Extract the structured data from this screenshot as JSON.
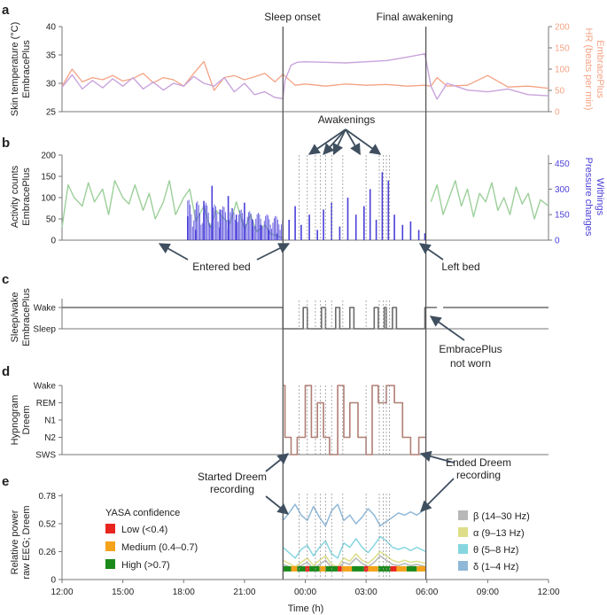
{
  "figure": {
    "panels": [
      "a",
      "b",
      "c",
      "d",
      "e"
    ],
    "xaxis": {
      "label": "Time (h)",
      "ticks": [
        "12:00",
        "15:00",
        "18:00",
        "21:00",
        "00:00",
        "03:00",
        "06:00",
        "09:00",
        "12:00"
      ],
      "tick_hours": [
        0,
        3,
        6,
        9,
        12,
        15,
        18,
        21,
        24
      ]
    },
    "events": {
      "sleep_onset": "Sleep onset",
      "final_awakening": "Final awakening",
      "sleep_onset_h": 10.9,
      "final_awakening_h": 17.95,
      "awakenings_label": "Awakenings",
      "awakening_hours": [
        11.7,
        12.1,
        12.5,
        12.75,
        13.0,
        13.3,
        13.85,
        15.0,
        15.65,
        15.85,
        16.0,
        16.15
      ]
    },
    "annotations": {
      "entered_bed": "Entered bed",
      "left_bed": "Left bed",
      "not_worn_line1": "EmbracePlus",
      "not_worn_line2": "not worn",
      "started_line1": "Started Dreem",
      "started_line2": "recording",
      "ended_line1": "Ended Dreem",
      "ended_line2": "recording"
    }
  },
  "chart_data": [
    {
      "panel": "a",
      "type": "line",
      "ylabel_left_line1": "Skin temperature (°C)",
      "ylabel_left_line2": "EmbracePlus",
      "ylabel_right_line1": "HR (beats per min)",
      "ylabel_right_line2": "EmbracePlus",
      "ylim_left": [
        25,
        40
      ],
      "yticks_left": [
        "25",
        "30",
        "35",
        "40"
      ],
      "ylim_right": [
        0,
        200
      ],
      "yticks_right": [
        "0",
        "50",
        "100",
        "150",
        "200"
      ],
      "series": [
        {
          "name": "Skin temperature",
          "axis": "left",
          "color": "#c9a4dc",
          "x": [
            0,
            0.5,
            1,
            1.5,
            2,
            2.5,
            3,
            3.5,
            4,
            4.5,
            5,
            5.5,
            6,
            6.5,
            7,
            7.5,
            8,
            8.5,
            9,
            9.5,
            10,
            10.5,
            10.9,
            11.0,
            11.3,
            11.6,
            12,
            13,
            14,
            15,
            16,
            17,
            17.9,
            18.2,
            18.5,
            19,
            20,
            21,
            22,
            23,
            24
          ],
          "y": [
            29.3,
            31.5,
            29.0,
            30.5,
            29.2,
            30.8,
            29.5,
            31.0,
            29.0,
            30.2,
            28.8,
            30.0,
            29.5,
            31.2,
            30.0,
            29.5,
            31.0,
            28.5,
            30.0,
            28.0,
            28.5,
            27.5,
            27.3,
            30.5,
            33.2,
            33.7,
            33.8,
            33.7,
            33.6,
            33.8,
            34.0,
            34.6,
            35.2,
            29.5,
            27.2,
            30.0,
            28.8,
            28.5,
            29.0,
            28.0,
            27.8
          ]
        },
        {
          "name": "HR",
          "axis": "right",
          "color": "#f4a384",
          "x": [
            0,
            0.5,
            1,
            1.5,
            2,
            2.5,
            3,
            3.5,
            4,
            4.5,
            5,
            5.5,
            6,
            6.5,
            7,
            7.5,
            8,
            8.5,
            9,
            9.5,
            10,
            10.5,
            10.9,
            11.5,
            12,
            13,
            14,
            15,
            16,
            17,
            17.9,
            18.2,
            18.5,
            19,
            20,
            21,
            22,
            23,
            24
          ],
          "y": [
            60,
            100,
            70,
            80,
            75,
            85,
            72,
            78,
            90,
            68,
            80,
            75,
            60,
            90,
            118,
            50,
            80,
            85,
            75,
            82,
            90,
            70,
            88,
            62,
            65,
            60,
            65,
            62,
            64,
            60,
            62,
            60,
            80,
            60,
            62,
            85,
            58,
            60,
            55
          ]
        }
      ]
    },
    {
      "panel": "b",
      "type": "line",
      "ylabel_left_line1": "Activity counts",
      "ylabel_left_line2": "EmbracePlus",
      "ylabel_right_line1": "Pressure changes",
      "ylabel_right_line2": "Withings",
      "ylim_left": [
        0,
        200
      ],
      "yticks_left": [
        "0",
        "50",
        "100",
        "150",
        "200"
      ],
      "ylim_right": [
        0,
        500
      ],
      "yticks_right": [
        "0",
        "150",
        "300",
        "450"
      ],
      "series": [
        {
          "name": "Activity counts",
          "axis": "left",
          "color": "#9ccf9a",
          "x": [
            0,
            0.3,
            0.6,
            1,
            1.3,
            1.6,
            2,
            2.3,
            2.6,
            3,
            3.3,
            3.6,
            4,
            4.3,
            4.6,
            5,
            5.3,
            5.6,
            6,
            6.3,
            6.6,
            7,
            7.3,
            7.6,
            8,
            8.3,
            8.6,
            9,
            9.3,
            9.6,
            10,
            10.3,
            10.6,
            10.9,
            18.2,
            18.5,
            18.8,
            19.1,
            19.4,
            19.7,
            20,
            20.3,
            20.6,
            20.9,
            21.2,
            21.5,
            21.8,
            22.1,
            22.4,
            22.7,
            23,
            23.3,
            23.6,
            24
          ],
          "y": [
            30,
            130,
            100,
            80,
            135,
            90,
            120,
            60,
            140,
            100,
            85,
            130,
            70,
            110,
            50,
            90,
            140,
            60,
            100,
            120,
            45,
            80,
            30,
            70,
            50,
            40,
            90,
            25,
            60,
            20,
            35,
            15,
            10,
            5,
            90,
            130,
            60,
            100,
            140,
            80,
            120,
            55,
            110,
            90,
            135,
            70,
            100,
            60,
            125,
            85,
            110,
            50,
            95,
            80
          ]
        },
        {
          "name": "Pressure changes",
          "axis": "right",
          "color": "#4a3fd8",
          "x": [
            6.2,
            6.6,
            7.0,
            7.4,
            7.8,
            8.2,
            8.6,
            9.0,
            9.4,
            9.8,
            10.2,
            10.6,
            10.9,
            11.2,
            11.5,
            11.8,
            12.2,
            12.6,
            12.9,
            13.3,
            13.7,
            14.1,
            14.5,
            14.9,
            15.2,
            15.5,
            15.8,
            16.1,
            16.4,
            16.8,
            17.2,
            17.6,
            17.9
          ],
          "y": [
            140,
            60,
            230,
            320,
            180,
            260,
            150,
            220,
            120,
            90,
            60,
            40,
            80,
            120,
            200,
            90,
            150,
            60,
            180,
            220,
            80,
            250,
            150,
            200,
            300,
            120,
            400,
            350,
            150,
            90,
            110,
            60,
            40
          ]
        }
      ]
    },
    {
      "panel": "c",
      "type": "line",
      "ylabel_line1": "Sleep/wake",
      "ylabel_line2": "EmbracePlus",
      "categories": [
        "Sleep",
        "Wake"
      ],
      "series": [
        {
          "name": "Sleep/wake",
          "color": "#6b6b6b",
          "x": [
            0,
            10.9,
            10.9,
            11.9,
            11.9,
            12.1,
            12.1,
            12.8,
            12.8,
            13.0,
            13.0,
            13.5,
            13.5,
            13.7,
            13.7,
            14.2,
            14.2,
            14.4,
            14.4,
            15.4,
            15.4,
            15.6,
            15.6,
            15.9,
            15.9,
            16.0,
            16.0,
            16.3,
            16.3,
            16.5,
            16.5,
            17.9,
            17.9,
            18.5
          ],
          "y": [
            1,
            1,
            0,
            0,
            1,
            1,
            0,
            0,
            1,
            1,
            0,
            0,
            1,
            1,
            0,
            0,
            1,
            1,
            0,
            0,
            1,
            1,
            0,
            0,
            1,
            1,
            0,
            0,
            1,
            1,
            0,
            0,
            1,
            1
          ]
        },
        {
          "name": "Sleep/wake (resumed)",
          "color": "#6b6b6b",
          "x": [
            18.8,
            24
          ],
          "y": [
            1,
            1
          ]
        }
      ]
    },
    {
      "panel": "d",
      "type": "line",
      "ylabel_line1": "Hypnogram",
      "ylabel_line2": "Dreem",
      "categories": [
        "SWS",
        "N2",
        "N1",
        "REM",
        "Wake"
      ],
      "series": [
        {
          "name": "Hypnogram",
          "color": "#b07e74",
          "x": [
            10.9,
            11.0,
            11.0,
            11.3,
            11.3,
            11.6,
            11.6,
            12.0,
            12.0,
            12.3,
            12.3,
            12.6,
            12.6,
            12.9,
            12.9,
            13.2,
            13.2,
            13.6,
            13.6,
            13.9,
            13.9,
            14.2,
            14.2,
            14.6,
            14.6,
            15.0,
            15.0,
            15.3,
            15.3,
            15.6,
            15.6,
            16.0,
            16.0,
            16.4,
            16.4,
            16.8,
            16.8,
            17.2,
            17.2,
            17.6,
            17.6,
            17.95
          ],
          "y": [
            4,
            4,
            1,
            1,
            0,
            0,
            1,
            1,
            4,
            4,
            1,
            1,
            3,
            3,
            1,
            1,
            0,
            0,
            4,
            4,
            1,
            1,
            3,
            3,
            1,
            1,
            0,
            0,
            4,
            4,
            3,
            3,
            4,
            4,
            3,
            3,
            1,
            1,
            0,
            0,
            1,
            1
          ]
        }
      ]
    },
    {
      "panel": "e",
      "type": "line",
      "ylabel_line1": "Relative power",
      "ylabel_line2": "raw EEG; Dreem",
      "ylim": [
        0,
        0.8
      ],
      "yticks": [
        "0",
        "0.26",
        "0.52",
        "0.78"
      ],
      "legend_title": "YASA confidence",
      "confidence_levels": [
        {
          "label": "Low (<0.4)",
          "color": "#e8261f"
        },
        {
          "label": "Medium (0.4–0.7)",
          "color": "#f5a31a"
        },
        {
          "label": "High (>0.7)",
          "color": "#1b8a1b"
        }
      ],
      "bands": [
        {
          "label": "β (14–30 Hz)",
          "color": "#b8b8b8"
        },
        {
          "label": "α (9–13 Hz)",
          "color": "#dede8a"
        },
        {
          "label": "θ (5–8 Hz)",
          "color": "#86d6e0"
        },
        {
          "label": "δ (1–4 Hz)",
          "color": "#8fb8d8"
        }
      ],
      "series": [
        {
          "name": "δ",
          "color": "#8fb8d8",
          "x": [
            10.9,
            11.2,
            11.5,
            11.8,
            12.1,
            12.4,
            12.7,
            13.0,
            13.3,
            13.6,
            13.9,
            14.2,
            14.5,
            14.8,
            15.1,
            15.4,
            15.7,
            16.0,
            16.3,
            16.6,
            16.9,
            17.2,
            17.5,
            17.95
          ],
          "y": [
            0.55,
            0.62,
            0.7,
            0.6,
            0.55,
            0.68,
            0.58,
            0.5,
            0.64,
            0.7,
            0.55,
            0.6,
            0.52,
            0.58,
            0.66,
            0.6,
            0.5,
            0.54,
            0.58,
            0.62,
            0.6,
            0.63,
            0.6,
            0.66
          ]
        },
        {
          "name": "θ",
          "color": "#86d6e0",
          "x": [
            10.9,
            11.2,
            11.5,
            11.8,
            12.1,
            12.4,
            12.7,
            13.0,
            13.3,
            13.6,
            13.9,
            14.2,
            14.5,
            14.8,
            15.1,
            15.4,
            15.7,
            16.0,
            16.3,
            16.6,
            16.9,
            17.2,
            17.5,
            17.95
          ],
          "y": [
            0.3,
            0.25,
            0.2,
            0.28,
            0.32,
            0.22,
            0.3,
            0.36,
            0.24,
            0.2,
            0.34,
            0.3,
            0.38,
            0.3,
            0.25,
            0.32,
            0.4,
            0.36,
            0.3,
            0.28,
            0.3,
            0.27,
            0.3,
            0.26
          ]
        },
        {
          "name": "α",
          "color": "#dede8a",
          "x": [
            10.9,
            11.2,
            11.5,
            11.8,
            12.1,
            12.4,
            12.7,
            13.0,
            13.3,
            13.6,
            13.9,
            14.2,
            14.5,
            14.8,
            15.1,
            15.4,
            15.7,
            16.0,
            16.3,
            16.6,
            16.9,
            17.2,
            17.5,
            17.95
          ],
          "y": [
            0.18,
            0.15,
            0.12,
            0.16,
            0.2,
            0.13,
            0.18,
            0.22,
            0.14,
            0.12,
            0.2,
            0.17,
            0.24,
            0.18,
            0.15,
            0.2,
            0.26,
            0.22,
            0.18,
            0.16,
            0.18,
            0.16,
            0.17,
            0.15
          ]
        },
        {
          "name": "β",
          "color": "#b8b8b8",
          "x": [
            10.9,
            11.2,
            11.5,
            11.8,
            12.1,
            12.4,
            12.7,
            13.0,
            13.3,
            13.6,
            13.9,
            14.2,
            14.5,
            14.8,
            15.1,
            15.4,
            15.7,
            16.0,
            16.3,
            16.6,
            16.9,
            17.2,
            17.5,
            17.95
          ],
          "y": [
            0.14,
            0.12,
            0.1,
            0.13,
            0.16,
            0.1,
            0.14,
            0.18,
            0.11,
            0.1,
            0.16,
            0.14,
            0.2,
            0.15,
            0.12,
            0.16,
            0.22,
            0.18,
            0.14,
            0.13,
            0.15,
            0.13,
            0.14,
            0.12
          ]
        }
      ],
      "confidence_strip": [
        {
          "start": 10.9,
          "end": 11.3,
          "level": 2
        },
        {
          "start": 11.3,
          "end": 11.6,
          "level": 1
        },
        {
          "start": 11.6,
          "end": 12.0,
          "level": 2
        },
        {
          "start": 12.0,
          "end": 12.2,
          "level": 0
        },
        {
          "start": 12.2,
          "end": 12.7,
          "level": 2
        },
        {
          "start": 12.7,
          "end": 13.0,
          "level": 1
        },
        {
          "start": 13.0,
          "end": 13.6,
          "level": 2
        },
        {
          "start": 13.6,
          "end": 13.8,
          "level": 0
        },
        {
          "start": 13.8,
          "end": 14.3,
          "level": 1
        },
        {
          "start": 14.3,
          "end": 14.9,
          "level": 2
        },
        {
          "start": 14.9,
          "end": 15.1,
          "level": 0
        },
        {
          "start": 15.1,
          "end": 15.6,
          "level": 1
        },
        {
          "start": 15.6,
          "end": 16.2,
          "level": 2
        },
        {
          "start": 16.2,
          "end": 16.5,
          "level": 0
        },
        {
          "start": 16.5,
          "end": 17.0,
          "level": 1
        },
        {
          "start": 17.0,
          "end": 17.5,
          "level": 2
        },
        {
          "start": 17.5,
          "end": 17.95,
          "level": 1
        }
      ]
    }
  ]
}
